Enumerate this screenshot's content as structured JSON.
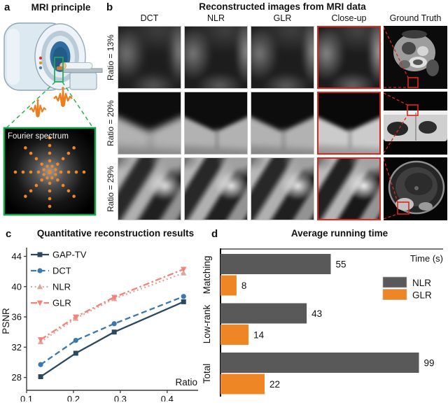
{
  "panel_a": {
    "letter": "a",
    "title": "MRI principle",
    "spectrum_label": "Fourier spectrum",
    "colors": {
      "dot_orange": "#f08626",
      "pulse_orange": "#ee7d1f",
      "green": "#1ea854",
      "bore_blue": "#2f6da0"
    }
  },
  "panel_b": {
    "letter": "b",
    "title": "Reconstructed images from MRI data",
    "columns": [
      "DCT",
      "NLR",
      "GLR",
      "Close-up",
      "Ground Truth"
    ],
    "row_labels": [
      "Ratio = 13%",
      "Ratio = 20%",
      "Ratio = 29%"
    ],
    "highlight_color": "#e0251c"
  },
  "panel_c": {
    "letter": "c"
  },
  "panel_d": {
    "letter": "d"
  },
  "chart_data": [
    {
      "type": "line",
      "title": "Quantitative reconstruction results",
      "xlabel": "Ratio",
      "ylabel": "PSNR",
      "x": [
        0.13,
        0.205,
        0.287,
        0.435
      ],
      "series": [
        {
          "name": "GAP-TV",
          "values": [
            28.1,
            31.2,
            34.0,
            38.0
          ],
          "color": "#2a4961",
          "dash": "solid",
          "marker": "square"
        },
        {
          "name": "DCT",
          "values": [
            29.7,
            32.9,
            35.1,
            38.7
          ],
          "color": "#3a78ad",
          "dash": "dashed",
          "marker": "circle"
        },
        {
          "name": "NLR",
          "values": [
            32.7,
            35.8,
            38.4,
            41.8
          ],
          "color": "#d8aa9e",
          "dash": "dotted",
          "marker": "triangle-up"
        },
        {
          "name": "GLR",
          "values": [
            33.0,
            36.0,
            38.6,
            42.3
          ],
          "color": "#f5817b",
          "dash": "dashdot",
          "marker": "triangle-down"
        }
      ],
      "xticks": [
        0.1,
        0.2,
        0.3,
        0.4
      ],
      "yticks": [
        28,
        32,
        36,
        40,
        44
      ],
      "xlim": [
        0.1,
        0.466
      ],
      "ylim": [
        26.3,
        44.6
      ],
      "grid": false,
      "legend_position": "top-left"
    },
    {
      "type": "bar",
      "orientation": "horizontal",
      "title": "Average running time",
      "axis_label": "Time (s)",
      "categories": [
        "Matching",
        "Low-rank",
        "Total"
      ],
      "series": [
        {
          "name": "NLR",
          "values": [
            55,
            43,
            99
          ],
          "color": "#595959"
        },
        {
          "name": "GLR",
          "values": [
            8,
            14,
            22
          ],
          "color": "#ee8625"
        }
      ],
      "xlim": [
        0,
        110
      ],
      "value_labels": true,
      "legend_position": "right"
    }
  ]
}
